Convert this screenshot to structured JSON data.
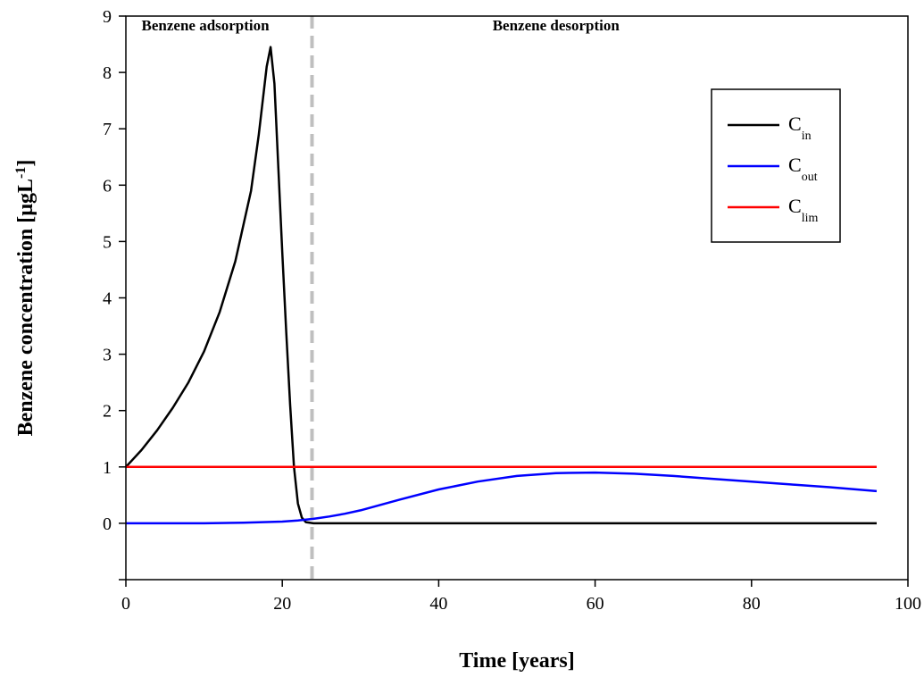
{
  "chart_data": {
    "type": "line",
    "title": "",
    "xlabel": "Time [years]",
    "ylabel": "Benzene concentration [µgL",
    "ylabel_superscript": "-1",
    "ylabel_close": "]",
    "xlim": [
      0,
      100
    ],
    "ylim": [
      -1,
      9
    ],
    "xticks": [
      0,
      20,
      40,
      60,
      80,
      100
    ],
    "yticks": [
      0,
      1,
      2,
      3,
      4,
      5,
      6,
      7,
      8,
      9
    ],
    "grid": false,
    "legend_position": "top-right",
    "annotations": [
      {
        "text": "Benzene adsorption",
        "x": 2,
        "y": 8.75
      },
      {
        "text": "Benzene desorption",
        "x": 55,
        "y": 8.75
      }
    ],
    "divider": {
      "x": 23.8,
      "style": "dashed",
      "color": "#bfbfbf"
    },
    "series": [
      {
        "name": "C",
        "subscript": "in",
        "color": "#000000",
        "x": [
          0,
          2,
          4,
          6,
          8,
          10,
          12,
          14,
          16,
          17,
          18,
          18.5,
          19,
          19.5,
          20,
          20.5,
          21,
          21.5,
          22,
          22.5,
          23,
          24,
          30,
          40,
          50,
          60,
          70,
          80,
          90,
          96
        ],
        "y": [
          1.0,
          1.3,
          1.65,
          2.05,
          2.5,
          3.05,
          3.75,
          4.65,
          5.9,
          6.9,
          8.1,
          8.45,
          7.8,
          6.3,
          4.8,
          3.4,
          2.1,
          1.0,
          0.35,
          0.1,
          0.02,
          0,
          0,
          0,
          0,
          0,
          0,
          0,
          0,
          0
        ]
      },
      {
        "name": "C",
        "subscript": "out",
        "color": "#0000ff",
        "x": [
          0,
          5,
          10,
          15,
          20,
          22,
          24,
          26,
          28,
          30,
          35,
          40,
          45,
          50,
          55,
          60,
          65,
          70,
          75,
          80,
          85,
          90,
          96
        ],
        "y": [
          0,
          0,
          0,
          0.01,
          0.03,
          0.05,
          0.08,
          0.12,
          0.17,
          0.23,
          0.42,
          0.6,
          0.74,
          0.84,
          0.89,
          0.9,
          0.88,
          0.84,
          0.79,
          0.74,
          0.69,
          0.64,
          0.57
        ]
      },
      {
        "name": "C",
        "subscript": "lim",
        "color": "#ff0000",
        "x": [
          0,
          96
        ],
        "y": [
          1,
          1
        ]
      }
    ]
  }
}
